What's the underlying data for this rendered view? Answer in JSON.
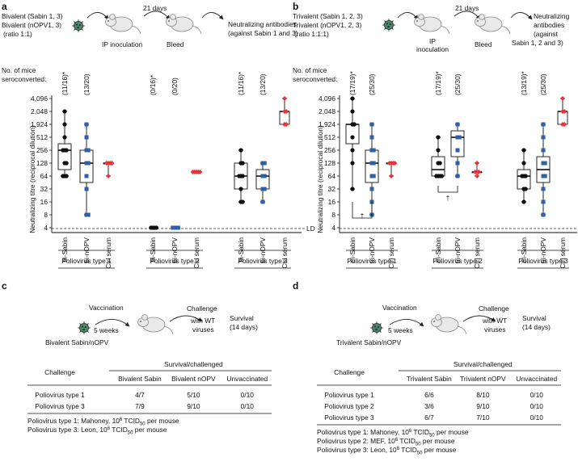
{
  "panel_a": {
    "label": "a",
    "schema": {
      "vaccine_line1": "Bivalent (Sabin 1, 3)",
      "vaccine_line2": "Bivalent (nOPV1, 3)",
      "vaccine_line3": "(ratio 1:1)",
      "step_inoculation": "IP inoculation",
      "days": "21 days",
      "step_bleed": "Bleed",
      "outcome_line1": "Neutralizing antibodies",
      "outcome_line2": "(against Sabin 1 and 3)"
    },
    "mice_label_line1": "No. of mice",
    "mice_label_line2": "seroconverted:",
    "seroconversion": [
      "(11/16)*",
      "(13/20)",
      "(0/16)*",
      "(0/20)",
      "(11/16)*",
      "(13/20)"
    ],
    "ylabel": "Neutralizing titre (reciprocal dilution)",
    "yticks": [
      "4,096",
      "2,048",
      "1,924",
      "512",
      "256",
      "128",
      "64",
      "32",
      "16",
      "8",
      "4"
    ],
    "ld_label": "LD",
    "xcategories": [
      "bi-Sabin",
      "bi-nOPV",
      "Ctrl serum",
      "bi-Sabin",
      "bi-nOPV",
      "Ctrl serum",
      "bi-Sabin",
      "bi-nOPV",
      "Ctrl serum"
    ],
    "groups": [
      "Poliovirus type 1",
      "Poliovirus type 2",
      "Poliovirus type 3"
    ]
  },
  "panel_b": {
    "label": "b",
    "schema": {
      "vaccine_line1": "Trivalent (Sabin 1, 2, 3)",
      "vaccine_line2": "Trivalent (nOPV1, 2, 3)",
      "vaccine_line3": "(ratio 1:1:1)",
      "step_inoculation_1": "IP",
      "step_inoculation_2": "inoculation",
      "days": "21 days",
      "step_bleed": "Bleed",
      "outcome_line1": "Neutralizing",
      "outcome_line2": "antibodies",
      "outcome_line3": "(against",
      "outcome_line4": "Sabin 1, 2 and 3)"
    },
    "mice_label_line1": "No. of mice",
    "mice_label_line2": "seroconverted:",
    "seroconversion": [
      "(17/19)*",
      "(25/30)",
      "(17/19)*",
      "(25/30)",
      "(13/19)*",
      "(25/30)"
    ],
    "ylabel": "Neutralizing titre (reciprocal dilution)",
    "yticks": [
      "4,096",
      "2,048",
      "1,924",
      "512",
      "256",
      "128",
      "64",
      "32",
      "16",
      "8",
      "4"
    ],
    "ld_label": "LD",
    "dagger": "†",
    "xcategories": [
      "tri-Sabin",
      "tri-nOPV",
      "Ctrl serum",
      "tri-Sabin",
      "tri-nOPV",
      "Ctrl serum",
      "tri-Sabin",
      "tri-nOPV",
      "Ctrl serum"
    ],
    "groups": [
      "Poliovirus type 1",
      "Poliovirus type 2",
      "Poliovirus type 3"
    ]
  },
  "panel_c": {
    "label": "c",
    "vaccine": "Bivalent Sabin/nOPV",
    "vaccination": "Vaccination",
    "weeks": "5 weeks",
    "challenge_line1": "Challenge",
    "challenge_line2": "with WT",
    "challenge_line3": "viruses",
    "survival_line1": "Survival",
    "survival_line2": "(14 days)",
    "table_header_challenge": "Challenge",
    "table_header_span": "Survival/challenged",
    "table_columns": [
      "Bivalent Sabin",
      "Bivalent nOPV",
      "Unvaccinated"
    ],
    "rows": [
      {
        "challenge": "Poliovirus type 1",
        "cells": [
          "4/7",
          "5/10",
          "0/10"
        ]
      },
      {
        "challenge": "Poliovirus type 3",
        "cells": [
          "7/9",
          "9/10",
          "0/10"
        ]
      }
    ],
    "footnotes": [
      {
        "pre": "Poliovirus type 1: Mahoney, 10",
        "sup": "6",
        "mid": " TCID",
        "sub": "50",
        "post": " per mouse"
      },
      {
        "pre": "Poliovirus type 3: Leon, 10",
        "sup": "6",
        "mid": " TCID",
        "sub": "50",
        "post": " per mouse"
      }
    ]
  },
  "panel_d": {
    "label": "d",
    "vaccine": "Trivalent Sabin/nOPV",
    "vaccination": "Vaccination",
    "weeks": "5 weeks",
    "challenge_line1": "Challenge",
    "challenge_line2": "with WT",
    "challenge_line3": "viruses",
    "survival_line1": "Survival",
    "survival_line2": "(14 days)",
    "table_header_challenge": "Challenge",
    "table_header_span": "Survival/challenged",
    "table_columns": [
      "Trivalent Sabin",
      "Trivalent nOPV",
      "Unvaccinated"
    ],
    "rows": [
      {
        "challenge": "Poliovirus type 1",
        "cells": [
          "6/6",
          "8/10",
          "0/10"
        ]
      },
      {
        "challenge": "Poliovirus type 2",
        "cells": [
          "3/6",
          "9/10",
          "0/10"
        ]
      },
      {
        "challenge": "Poliovirus type 3",
        "cells": [
          "6/7",
          "7/10",
          "0/10"
        ]
      }
    ],
    "footnotes": [
      {
        "pre": "Poliovirus type 1: Mahoney, 10",
        "sup": "6",
        "mid": " TCID",
        "sub": "50",
        "post": " per mouse"
      },
      {
        "pre": "Poliovirus type 2: MEF, 10",
        "sup": "6",
        "mid": " TCID",
        "sub": "50",
        "post": " per mouse"
      },
      {
        "pre": "Poliovirus type 3: Leon, 10",
        "sup": "6",
        "mid": " TCID",
        "sub": "50",
        "post": " per mouse"
      }
    ]
  },
  "colors": {
    "sabin": "#111111",
    "nopv": "#2f5faa",
    "ctrl": "#e8333a"
  },
  "chart_data": [
    {
      "type": "box-dot",
      "panel": "a",
      "title": "",
      "ylabel": "Neutralizing titre (reciprocal dilution)",
      "yscale": "log2",
      "ylim": [
        4,
        4096
      ],
      "limit_of_detection": 4,
      "series": [
        {
          "name": "bi-Sabin type 1",
          "values": [
            2048,
            1024,
            512,
            256,
            256,
            256,
            128,
            128,
            64,
            64,
            64
          ]
        },
        {
          "name": "bi-nOPV type 1",
          "values": [
            1924,
            512,
            256,
            256,
            128,
            128,
            64,
            32,
            8,
            8
          ]
        },
        {
          "name": "Ctrl serum type 1",
          "values": [
            128,
            128,
            128,
            128,
            64
          ]
        },
        {
          "name": "bi-Sabin type 2",
          "values": [
            4,
            4,
            4,
            4
          ]
        },
        {
          "name": "bi-nOPV type 2",
          "values": [
            4,
            4,
            4,
            4
          ]
        },
        {
          "name": "Ctrl serum type 2",
          "values": [
            80,
            80,
            80,
            80,
            80
          ]
        },
        {
          "name": "bi-Sabin type 3",
          "values": [
            256,
            128,
            128,
            64,
            64,
            64,
            32,
            16,
            16
          ]
        },
        {
          "name": "bi-nOPV type 3",
          "values": [
            128,
            128,
            64,
            64,
            32,
            32,
            16
          ]
        },
        {
          "name": "Ctrl serum type 3",
          "values": [
            4096,
            2048,
            2048,
            1924,
            1924
          ]
        }
      ]
    },
    {
      "type": "box-dot",
      "panel": "b",
      "title": "",
      "ylabel": "Neutralizing titre (reciprocal dilution)",
      "yscale": "log2",
      "ylim": [
        4,
        4096
      ],
      "limit_of_detection": 4,
      "series": [
        {
          "name": "tri-Sabin type 1",
          "values": [
            4096,
            2048,
            1924,
            1924,
            1024,
            1024,
            512,
            256,
            128,
            32
          ]
        },
        {
          "name": "tri-nOPV type 1",
          "values": [
            1924,
            512,
            256,
            256,
            128,
            128,
            64,
            64,
            32,
            16,
            8
          ]
        },
        {
          "name": "Ctrl serum type 1",
          "values": [
            128,
            128,
            128,
            128,
            64
          ]
        },
        {
          "name": "tri-Sabin type 2",
          "values": [
            512,
            256,
            128,
            128,
            64,
            64,
            64,
            64
          ]
        },
        {
          "name": "tri-nOPV type 2",
          "values": [
            1924,
            1024,
            512,
            512,
            256,
            128,
            64
          ]
        },
        {
          "name": "Ctrl serum type 2",
          "values": [
            128,
            80,
            80,
            80,
            64
          ]
        },
        {
          "name": "tri-Sabin type 3",
          "values": [
            256,
            128,
            64,
            64,
            64,
            32,
            32,
            16
          ]
        },
        {
          "name": "tri-nOPV type 3",
          "values": [
            1924,
            512,
            256,
            128,
            128,
            64,
            64,
            32,
            16,
            8
          ]
        },
        {
          "name": "Ctrl serum type 3",
          "values": [
            4096,
            2048,
            2048,
            1924,
            1924
          ]
        }
      ]
    }
  ]
}
